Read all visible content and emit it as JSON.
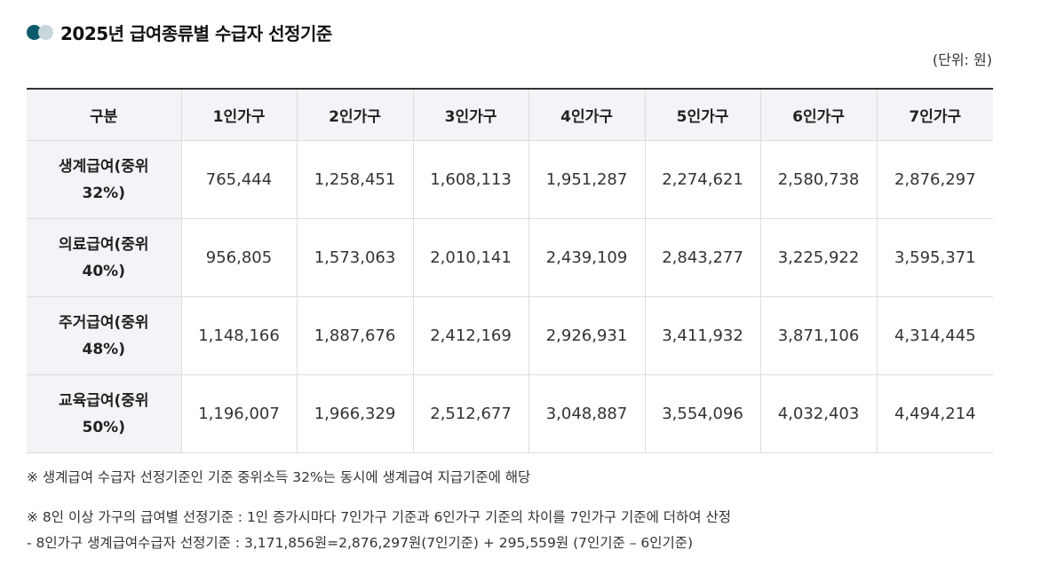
{
  "title": "2025년 급여종류별 수급자 선정기준",
  "unit": "(단위: 원)",
  "table": {
    "headers": [
      "구분",
      "1인가구",
      "2인가구",
      "3인가구",
      "4인가구",
      "5인가구",
      "6인가구",
      "7인가구"
    ],
    "rows": [
      {
        "label1": "생계급여(중위",
        "label2": "32%)",
        "values": [
          "765,444",
          "1,258,451",
          "1,608,113",
          "1,951,287",
          "2,274,621",
          "2,580,738",
          "2,876,297"
        ]
      },
      {
        "label1": "의료급여(중위",
        "label2": "40%)",
        "values": [
          "956,805",
          "1,573,063",
          "2,010,141",
          "2,439,109",
          "2,843,277",
          "3,225,922",
          "3,595,371"
        ]
      },
      {
        "label1": "주거급여(중위",
        "label2": "48%)",
        "values": [
          "1,148,166",
          "1,887,676",
          "2,412,169",
          "2,926,931",
          "3,411,932",
          "3,871,106",
          "4,314,445"
        ]
      },
      {
        "label1": "교육급여(중위",
        "label2": "50%)",
        "values": [
          "1,196,007",
          "1,966,329",
          "2,512,677",
          "3,048,887",
          "3,554,096",
          "4,032,403",
          "4,494,214"
        ]
      }
    ]
  },
  "notes": [
    "※ 생계급여 수급자 선정기준인 기준 중위소득 32%는 동시에 생계급여 지급기준에 해당",
    "※ 8인 이상 가구의 급여별 선정기준 : 1인 증가시마다 7인가구 기준과 6인가구 기준의 차이를 7인가구 기준에 더하여 산정",
    "- 8인가구 생계급여수급자 선정기준 : 3,171,856원=2,876,297원(7인기준) + 295,559원 (7인기준 – 6인기준)"
  ]
}
